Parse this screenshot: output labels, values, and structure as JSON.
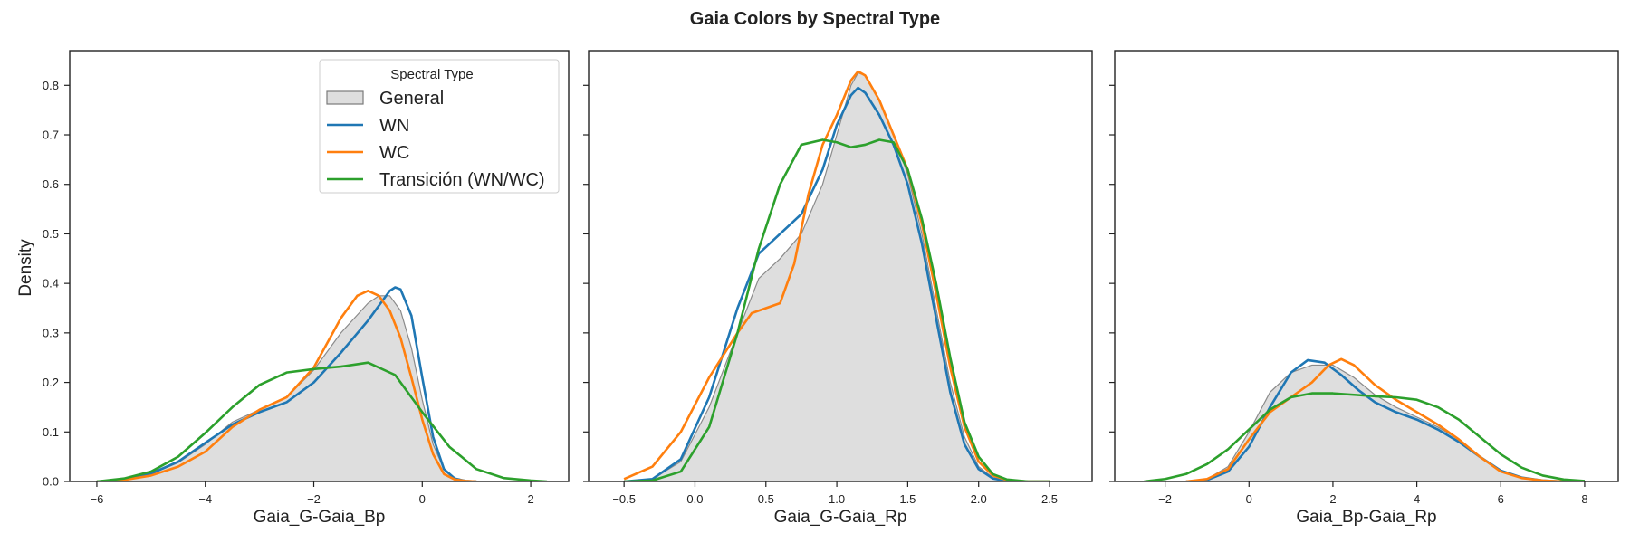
{
  "figure": {
    "title": "Gaia Colors by Spectral Type",
    "ylabel": "Density",
    "legend": {
      "title": "Spectral Type",
      "placement": "upper-right of first panel",
      "entries": [
        "General",
        "WN",
        "WC",
        "Transición (WN/WC)"
      ]
    }
  },
  "series_colors": {
    "General": "#c8c8c8",
    "WN": "#1f77b4",
    "WC": "#ff7f0e",
    "Transición (WN/WC)": "#2ca02c"
  },
  "chart_data": [
    {
      "type": "area",
      "xlabel": "Gaia_G-Gaia_Bp",
      "ylabel": "Density",
      "xlim": [
        -6.5,
        2.7
      ],
      "ylim": [
        0,
        0.87
      ],
      "xticks": [
        "−6",
        "−4",
        "−2",
        "0",
        "2"
      ],
      "xtick_values": [
        -6,
        -4,
        -2,
        0,
        2
      ],
      "yticks": [
        "0.0",
        "0.1",
        "0.2",
        "0.3",
        "0.4",
        "0.5",
        "0.6",
        "0.7",
        "0.8"
      ],
      "ytick_values": [
        0,
        0.1,
        0.2,
        0.3,
        0.4,
        0.5,
        0.6,
        0.7,
        0.8
      ],
      "series": [
        {
          "name": "General",
          "x": [
            -6.0,
            -5.5,
            -5.0,
            -4.5,
            -4.0,
            -3.5,
            -3.0,
            -2.5,
            -2.0,
            -1.5,
            -1.0,
            -0.8,
            -0.6,
            -0.4,
            -0.2,
            0.0,
            0.2,
            0.4,
            0.6,
            0.8,
            1.0
          ],
          "y": [
            0.0,
            0.004,
            0.015,
            0.038,
            0.075,
            0.12,
            0.145,
            0.17,
            0.225,
            0.3,
            0.36,
            0.375,
            0.375,
            0.345,
            0.27,
            0.165,
            0.075,
            0.025,
            0.007,
            0.001,
            0.0
          ]
        },
        {
          "name": "WN",
          "x": [
            -6.0,
            -5.5,
            -5.0,
            -4.5,
            -4.0,
            -3.5,
            -3.0,
            -2.5,
            -2.0,
            -1.5,
            -1.0,
            -0.8,
            -0.6,
            -0.5,
            -0.4,
            -0.2,
            0.0,
            0.2,
            0.4,
            0.6,
            0.8,
            1.0
          ],
          "y": [
            0.0,
            0.004,
            0.016,
            0.04,
            0.078,
            0.115,
            0.14,
            0.16,
            0.2,
            0.26,
            0.325,
            0.355,
            0.385,
            0.392,
            0.388,
            0.335,
            0.21,
            0.09,
            0.025,
            0.006,
            0.001,
            0.0
          ]
        },
        {
          "name": "WC",
          "x": [
            -6.0,
            -5.5,
            -5.0,
            -4.5,
            -4.0,
            -3.5,
            -3.0,
            -2.5,
            -2.0,
            -1.5,
            -1.2,
            -1.0,
            -0.8,
            -0.6,
            -0.4,
            -0.2,
            0.0,
            0.2,
            0.4,
            0.6,
            0.8,
            1.0
          ],
          "y": [
            0.0,
            0.003,
            0.012,
            0.03,
            0.06,
            0.11,
            0.145,
            0.17,
            0.23,
            0.33,
            0.375,
            0.385,
            0.375,
            0.345,
            0.29,
            0.21,
            0.125,
            0.055,
            0.015,
            0.004,
            0.001,
            0.0
          ]
        },
        {
          "name": "Transición (WN/WC)",
          "x": [
            -6.0,
            -5.5,
            -5.0,
            -4.5,
            -4.0,
            -3.5,
            -3.0,
            -2.5,
            -2.0,
            -1.5,
            -1.0,
            -0.5,
            0.0,
            0.5,
            1.0,
            1.5,
            2.0,
            2.3
          ],
          "y": [
            0.0,
            0.006,
            0.02,
            0.05,
            0.098,
            0.15,
            0.195,
            0.22,
            0.227,
            0.232,
            0.24,
            0.215,
            0.14,
            0.07,
            0.025,
            0.007,
            0.002,
            0.0
          ]
        }
      ]
    },
    {
      "type": "area",
      "xlabel": "Gaia_G-Gaia_Rp",
      "ylabel": "",
      "xlim": [
        -0.75,
        2.8
      ],
      "ylim": [
        0,
        0.87
      ],
      "xticks": [
        "−0.5",
        "0.0",
        "0.5",
        "1.0",
        "1.5",
        "2.0",
        "2.5"
      ],
      "xtick_values": [
        -0.5,
        0.0,
        0.5,
        1.0,
        1.5,
        2.0,
        2.5
      ],
      "yticks": [],
      "ytick_values": [
        0,
        0.1,
        0.2,
        0.3,
        0.4,
        0.5,
        0.6,
        0.7,
        0.8
      ],
      "series": [
        {
          "name": "General",
          "x": [
            -0.5,
            -0.3,
            -0.1,
            0.1,
            0.3,
            0.45,
            0.6,
            0.75,
            0.9,
            1.0,
            1.1,
            1.15,
            1.2,
            1.3,
            1.4,
            1.5,
            1.6,
            1.7,
            1.8,
            1.9,
            2.0,
            2.1,
            2.2,
            2.35,
            2.5
          ],
          "y": [
            0.0,
            0.005,
            0.04,
            0.15,
            0.3,
            0.41,
            0.45,
            0.5,
            0.6,
            0.7,
            0.8,
            0.825,
            0.82,
            0.77,
            0.7,
            0.62,
            0.5,
            0.35,
            0.2,
            0.09,
            0.03,
            0.008,
            0.002,
            0.0,
            0.0
          ]
        },
        {
          "name": "WN",
          "x": [
            -0.5,
            -0.3,
            -0.1,
            0.1,
            0.3,
            0.45,
            0.6,
            0.75,
            0.9,
            1.0,
            1.1,
            1.15,
            1.2,
            1.3,
            1.4,
            1.5,
            1.6,
            1.7,
            1.8,
            1.9,
            2.0,
            2.1,
            2.2,
            2.35,
            2.5
          ],
          "y": [
            0.0,
            0.005,
            0.045,
            0.17,
            0.35,
            0.46,
            0.5,
            0.54,
            0.63,
            0.72,
            0.78,
            0.795,
            0.785,
            0.74,
            0.68,
            0.6,
            0.48,
            0.33,
            0.18,
            0.075,
            0.025,
            0.006,
            0.001,
            0.0,
            0.0
          ]
        },
        {
          "name": "WC",
          "x": [
            -0.5,
            -0.3,
            -0.1,
            0.1,
            0.3,
            0.4,
            0.5,
            0.6,
            0.7,
            0.8,
            0.9,
            1.0,
            1.1,
            1.15,
            1.2,
            1.3,
            1.4,
            1.5,
            1.6,
            1.7,
            1.8,
            1.9,
            2.0,
            2.1,
            2.2,
            2.35,
            2.5
          ],
          "y": [
            0.005,
            0.03,
            0.1,
            0.21,
            0.3,
            0.34,
            0.35,
            0.36,
            0.44,
            0.58,
            0.68,
            0.74,
            0.81,
            0.828,
            0.82,
            0.77,
            0.7,
            0.63,
            0.52,
            0.38,
            0.23,
            0.11,
            0.04,
            0.012,
            0.003,
            0.0,
            0.0
          ]
        },
        {
          "name": "Transición (WN/WC)",
          "x": [
            -0.5,
            -0.3,
            -0.1,
            0.1,
            0.3,
            0.45,
            0.6,
            0.75,
            0.9,
            1.0,
            1.1,
            1.2,
            1.3,
            1.4,
            1.5,
            1.6,
            1.7,
            1.8,
            1.9,
            2.0,
            2.1,
            2.2,
            2.35,
            2.5
          ],
          "y": [
            0.0,
            0.002,
            0.02,
            0.11,
            0.3,
            0.47,
            0.6,
            0.68,
            0.69,
            0.685,
            0.675,
            0.68,
            0.69,
            0.685,
            0.63,
            0.53,
            0.4,
            0.25,
            0.12,
            0.05,
            0.015,
            0.004,
            0.0,
            0.0
          ]
        }
      ]
    },
    {
      "type": "area",
      "xlabel": "Gaia_Bp-Gaia_Rp",
      "ylabel": "",
      "xlim": [
        -3.2,
        8.8
      ],
      "ylim": [
        0,
        0.87
      ],
      "xticks": [
        "−2",
        "0",
        "2",
        "4",
        "6",
        "8"
      ],
      "xtick_values": [
        -2,
        0,
        2,
        4,
        6,
        8
      ],
      "yticks": [],
      "ytick_values": [
        0,
        0.1,
        0.2,
        0.3,
        0.4,
        0.5,
        0.6,
        0.7,
        0.8
      ],
      "series": [
        {
          "name": "General",
          "x": [
            -1.5,
            -1.0,
            -0.5,
            0.0,
            0.5,
            1.0,
            1.5,
            2.0,
            2.5,
            3.0,
            3.5,
            4.0,
            4.5,
            5.0,
            5.5,
            6.0,
            6.5,
            7.0,
            7.5,
            8.0
          ],
          "y": [
            0.0,
            0.005,
            0.03,
            0.1,
            0.18,
            0.22,
            0.235,
            0.235,
            0.21,
            0.175,
            0.15,
            0.13,
            0.11,
            0.085,
            0.05,
            0.022,
            0.008,
            0.002,
            0.0,
            0.0
          ]
        },
        {
          "name": "WN",
          "x": [
            -1.5,
            -1.0,
            -0.5,
            0.0,
            0.5,
            1.0,
            1.4,
            1.8,
            2.2,
            2.6,
            3.0,
            3.5,
            4.0,
            4.5,
            5.0,
            5.5,
            6.0,
            6.5,
            7.0,
            7.5,
            8.0
          ],
          "y": [
            0.0,
            0.003,
            0.02,
            0.07,
            0.15,
            0.22,
            0.245,
            0.24,
            0.215,
            0.185,
            0.16,
            0.14,
            0.125,
            0.105,
            0.08,
            0.05,
            0.022,
            0.008,
            0.002,
            0.0,
            0.0
          ]
        },
        {
          "name": "WC",
          "x": [
            -1.5,
            -1.0,
            -0.5,
            0.0,
            0.5,
            1.0,
            1.5,
            1.9,
            2.2,
            2.5,
            3.0,
            3.5,
            4.0,
            4.5,
            5.0,
            5.5,
            6.0,
            6.5,
            7.0,
            7.5,
            8.0
          ],
          "y": [
            0.0,
            0.005,
            0.025,
            0.085,
            0.14,
            0.17,
            0.2,
            0.235,
            0.247,
            0.235,
            0.195,
            0.165,
            0.14,
            0.115,
            0.085,
            0.05,
            0.02,
            0.007,
            0.002,
            0.0,
            0.0
          ]
        },
        {
          "name": "Transición (WN/WC)",
          "x": [
            -2.5,
            -2.0,
            -1.5,
            -1.0,
            -0.5,
            0.0,
            0.5,
            1.0,
            1.5,
            2.0,
            2.5,
            3.0,
            3.5,
            4.0,
            4.5,
            5.0,
            5.5,
            6.0,
            6.5,
            7.0,
            7.5,
            8.0
          ],
          "y": [
            0.0,
            0.005,
            0.015,
            0.035,
            0.065,
            0.105,
            0.145,
            0.17,
            0.178,
            0.178,
            0.175,
            0.172,
            0.17,
            0.165,
            0.15,
            0.125,
            0.09,
            0.055,
            0.028,
            0.012,
            0.004,
            0.001
          ]
        }
      ]
    }
  ]
}
